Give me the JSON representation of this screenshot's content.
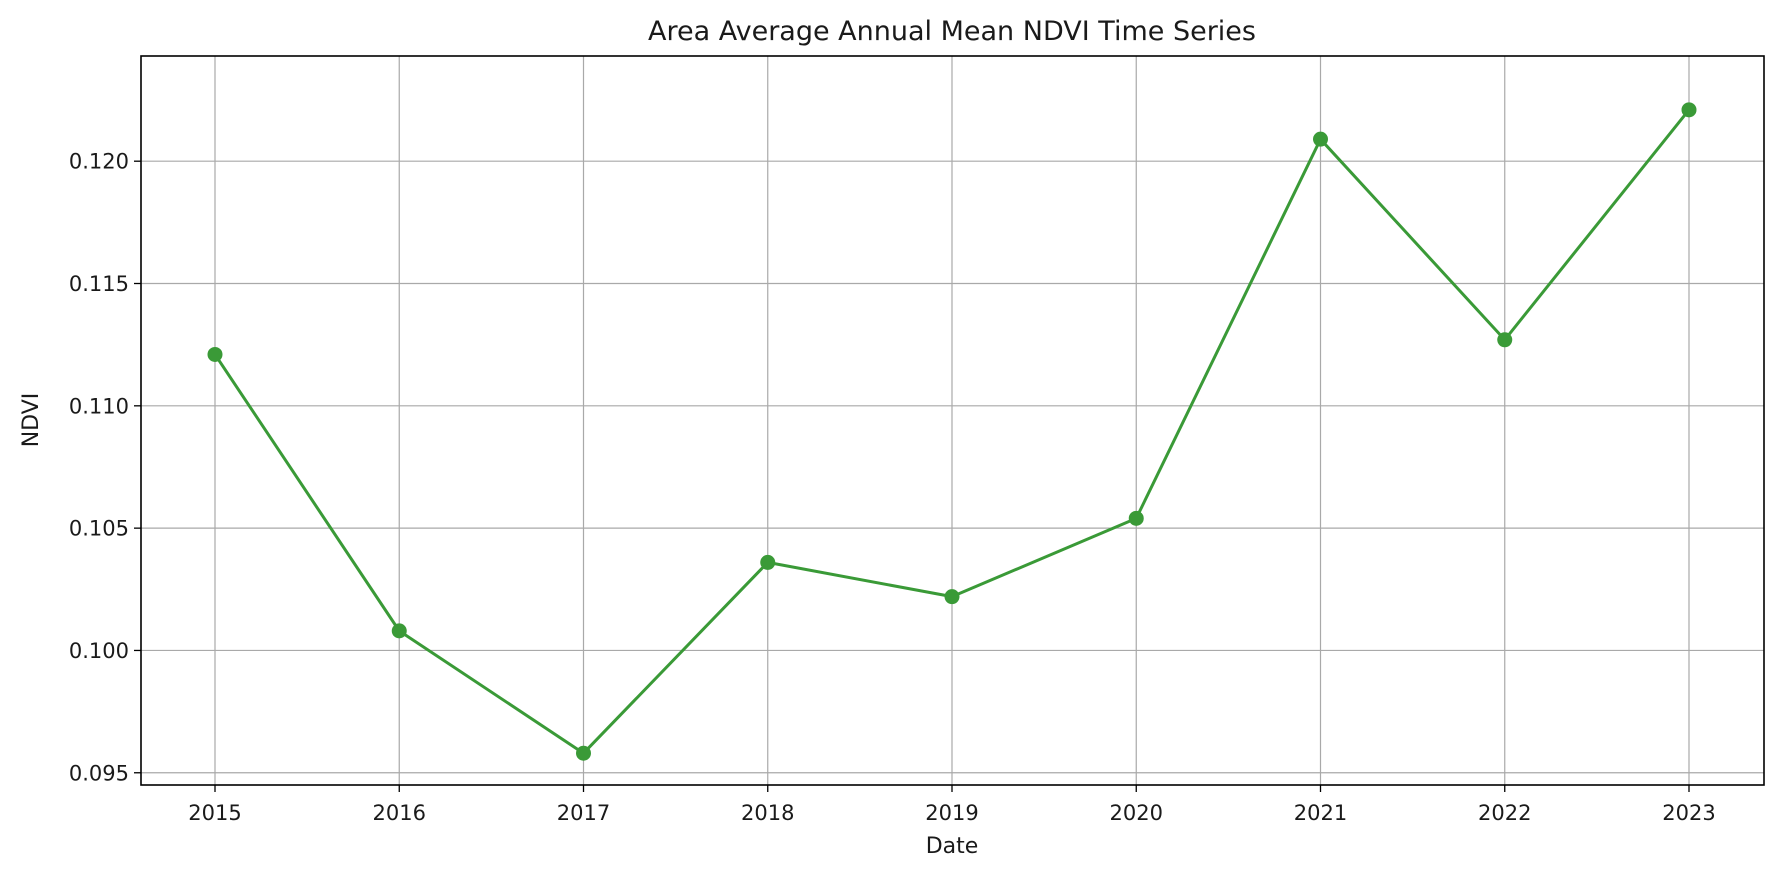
{
  "chart_data": {
    "type": "line",
    "title": "Area Average Annual Mean NDVI Time Series",
    "xlabel": "Date",
    "ylabel": "NDVI",
    "categories": [
      "2015",
      "2016",
      "2017",
      "2018",
      "2019",
      "2020",
      "2021",
      "2022",
      "2023"
    ],
    "series": [
      {
        "values": [
          0.1121,
          0.1008,
          0.0958,
          0.1036,
          0.1022,
          0.1054,
          0.1209,
          0.1127,
          0.1221
        ],
        "color": "#3a9a37",
        "marker": "circle"
      }
    ],
    "ylim": [
      0.0945,
      0.1243
    ],
    "yticks": [
      0.095,
      0.1,
      0.105,
      0.11,
      0.115,
      0.12
    ],
    "ytick_labels": [
      "0.095",
      "0.100",
      "0.105",
      "0.110",
      "0.115",
      "0.120"
    ],
    "grid": true,
    "legend": false
  }
}
